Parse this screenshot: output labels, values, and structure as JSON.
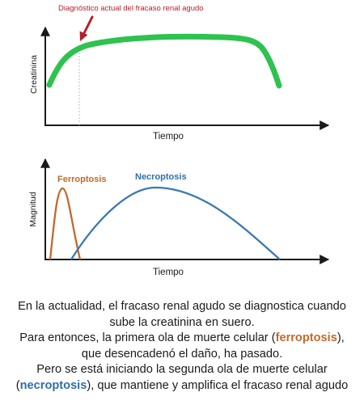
{
  "colors": {
    "creatinine_curve": "#2ec24e",
    "annotation": "#b3202a",
    "ferroptosis": "#c2692a",
    "necroptosis": "#3a78b0",
    "axes": "#1a1a1a"
  },
  "top_chart": {
    "annotation": "Diagnóstico actual del fracaso renal agudo",
    "ylabel": "Creatinina",
    "xlabel": "Tiempo"
  },
  "bottom_chart": {
    "ylabel": "Magnitud",
    "xlabel": "Tiempo",
    "ferroptosis_label": "Ferroptosis",
    "necroptosis_label": "Necroptosis"
  },
  "caption": {
    "line1": "En la actualidad, el fracaso renal agudo se diagnostica cuando",
    "line2": "sube la creatinina en suero.",
    "line3_pre": "Para entonces, la primera ola de muerte celular (",
    "line3_term": "ferroptosis",
    "line3_post": "),",
    "line4": "que desencadenó el daño, ha pasado.",
    "line5": "Pero se está iniciando la segunda ola de muerte celular",
    "line6_pre": "(",
    "line6_term": "necroptosis",
    "line6_post": "), que mantiene y amplifica el fracaso renal agudo"
  }
}
